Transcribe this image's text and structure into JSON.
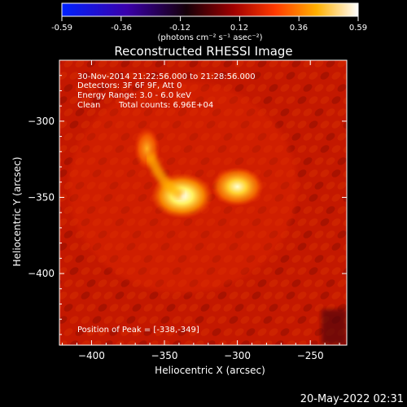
{
  "colorbar": {
    "ticks": [
      "-0.59",
      "-0.36",
      "-0.12",
      "0.12",
      "0.36",
      "0.59"
    ],
    "label": "(photons cm⁻² s⁻¹ asec⁻²)"
  },
  "title": "Reconstructed RHESSI Image",
  "info": {
    "line1": "30-Nov-2014 21:22:56.000 to 21:28:56.000",
    "line2": "Detectors: 3F 6F 9F, Att 0",
    "line3": "Energy Range: 3.0 - 6.0 keV",
    "line4_a": "Clean",
    "line4_b": "Total counts: 6.96E+04"
  },
  "peak_text": "Position of Peak = [-338,-349]",
  "timestamp": "20-May-2022 02:31",
  "chart_data": {
    "type": "heatmap",
    "title": "Reconstructed RHESSI Image",
    "xlabel": "Heliocentric X (arcsec)",
    "ylabel": "Heliocentric Y (arcsec)",
    "x_ticks": [
      -400,
      -350,
      -300,
      -250
    ],
    "y_ticks": [
      -300,
      -350,
      -400
    ],
    "xlim": [
      -422,
      -225
    ],
    "ylim": [
      -447,
      -260
    ],
    "colorbar_range": [
      -0.59,
      0.59
    ],
    "colormap": [
      "#0000ff",
      "#000000",
      "#ff0000",
      "#ffff00",
      "#ffffff"
    ],
    "background_level": 0.12,
    "peak": [
      -338,
      -349
    ],
    "sources": [
      {
        "x": -338,
        "y": -349,
        "intensity": 0.59
      },
      {
        "x": -300,
        "y": -343,
        "intensity": 0.52
      },
      {
        "x": -362,
        "y": -318,
        "intensity": 0.33
      }
    ]
  }
}
